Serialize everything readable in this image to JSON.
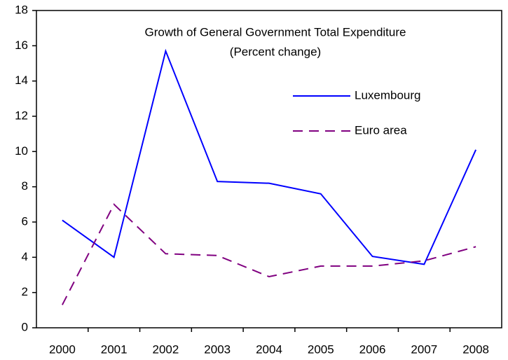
{
  "chart_data": {
    "type": "line",
    "title": "Growth of General Government Total Expenditure",
    "subtitle": "(Percent change)",
    "categories": [
      "2000",
      "2001",
      "2002",
      "2003",
      "2004",
      "2005",
      "2006",
      "2007",
      "2008"
    ],
    "series": [
      {
        "name": "Luxembourg",
        "color": "#0000ff",
        "line_style": "solid",
        "values": [
          6.1,
          4.0,
          15.7,
          8.3,
          8.2,
          7.6,
          4.05,
          3.6,
          10.1
        ]
      },
      {
        "name": "Euro area",
        "color": "#800080",
        "line_style": "dashed",
        "values": [
          1.3,
          7.0,
          4.2,
          4.1,
          2.9,
          3.5,
          3.5,
          3.8,
          4.6
        ]
      }
    ],
    "ylim": [
      0,
      18
    ],
    "yticks": [
      0,
      2,
      4,
      6,
      8,
      10,
      12,
      14,
      16,
      18
    ],
    "grid": false
  }
}
